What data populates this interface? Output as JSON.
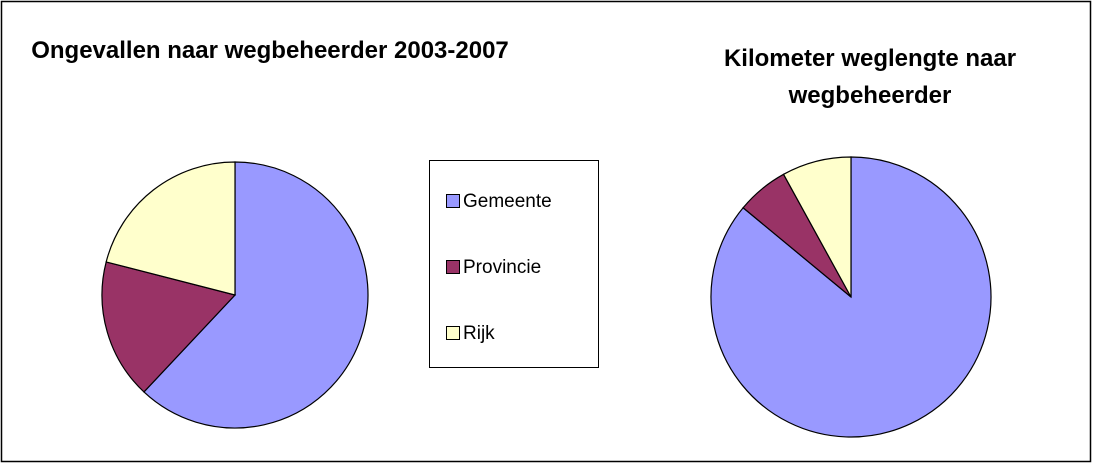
{
  "chart_data": [
    {
      "type": "pie",
      "title": "Ongevallen naar wegbeheerder 2003-2007",
      "categories": [
        "Gemeente",
        "Provincie",
        "Rijk"
      ],
      "values": [
        62,
        17,
        21
      ],
      "colors": [
        "#9999ff",
        "#993366",
        "#ffffcc"
      ]
    },
    {
      "type": "pie",
      "title": "Kilometer weglengte naar wegbeheerder",
      "categories": [
        "Gemeente",
        "Provincie",
        "Rijk"
      ],
      "values": [
        86,
        6,
        8
      ],
      "colors": [
        "#9999ff",
        "#993366",
        "#ffffcc"
      ]
    }
  ]
}
